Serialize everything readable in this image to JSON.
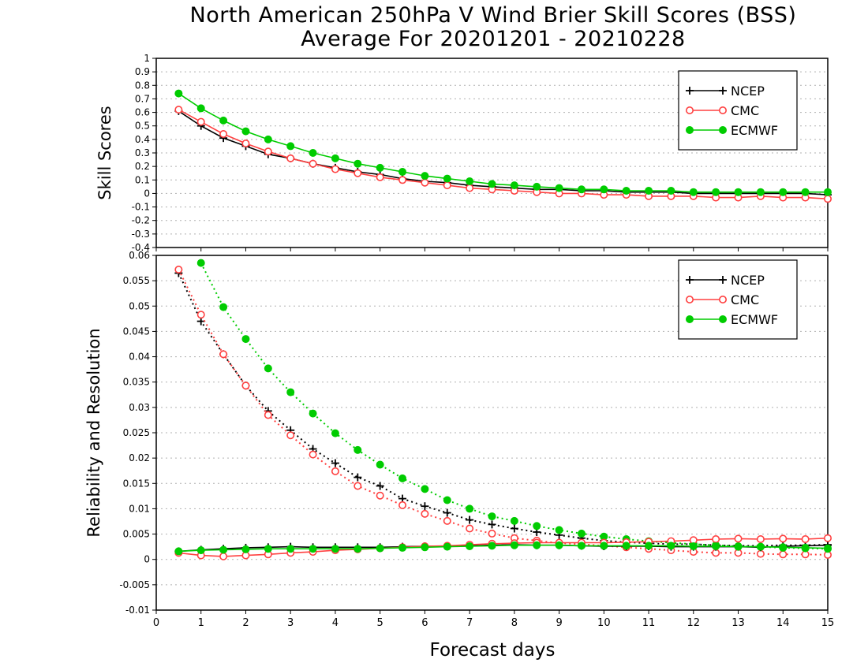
{
  "figure": {
    "title_line1": "North American 250hPa V Wind Brier Skill Scores (BSS)",
    "title_line2": "Average For 20201201 - 20210228"
  },
  "chart_data": [
    {
      "type": "line",
      "panel": "top",
      "ylabel": "Skill Scores",
      "xlabel": "",
      "xlim": [
        0,
        15
      ],
      "ylim": [
        -0.4,
        1.0
      ],
      "yticks": [
        "1",
        "0.9",
        "0.8",
        "0.7",
        "0.6",
        "0.5",
        "0.4",
        "0.3",
        "0.2",
        "0.1",
        "0",
        "-0.1",
        "-0.2",
        "-0.3",
        "-0.4"
      ],
      "grid": true,
      "legend_position": "top-right",
      "series": [
        {
          "name": "NCEP",
          "color": "#000000",
          "marker": "plus",
          "style": "solid",
          "x": [
            0.5,
            1,
            1.5,
            2,
            2.5,
            3,
            3.5,
            4,
            4.5,
            5,
            5.5,
            6,
            6.5,
            7,
            7.5,
            8,
            8.5,
            9,
            9.5,
            10,
            10.5,
            11,
            11.5,
            12,
            12.5,
            13,
            13.5,
            14,
            14.5,
            15
          ],
          "y": [
            0.61,
            0.5,
            0.41,
            0.35,
            0.29,
            0.26,
            0.22,
            0.19,
            0.16,
            0.14,
            0.11,
            0.09,
            0.08,
            0.06,
            0.05,
            0.04,
            0.03,
            0.03,
            0.02,
            0.02,
            0.01,
            0.01,
            0.01,
            0.0,
            0.0,
            0.0,
            0.0,
            0.0,
            0.0,
            -0.01
          ]
        },
        {
          "name": "CMC",
          "color": "#ff4040",
          "marker": "circle-open",
          "style": "solid",
          "x": [
            0.5,
            1,
            1.5,
            2,
            2.5,
            3,
            3.5,
            4,
            4.5,
            5,
            5.5,
            6,
            6.5,
            7,
            7.5,
            8,
            8.5,
            9,
            9.5,
            10,
            10.5,
            11,
            11.5,
            12,
            12.5,
            13,
            13.5,
            14,
            14.5,
            15
          ],
          "y": [
            0.62,
            0.53,
            0.44,
            0.37,
            0.31,
            0.26,
            0.22,
            0.18,
            0.15,
            0.12,
            0.1,
            0.08,
            0.06,
            0.04,
            0.03,
            0.02,
            0.01,
            0.0,
            -0.0,
            -0.01,
            -0.01,
            -0.02,
            -0.02,
            -0.02,
            -0.03,
            -0.03,
            -0.02,
            -0.03,
            -0.03,
            -0.04
          ]
        },
        {
          "name": "ECMWF",
          "color": "#00cc00",
          "marker": "dot",
          "style": "solid",
          "x": [
            0.5,
            1,
            1.5,
            2,
            2.5,
            3,
            3.5,
            4,
            4.5,
            5,
            5.5,
            6,
            6.5,
            7,
            7.5,
            8,
            8.5,
            9,
            9.5,
            10,
            10.5,
            11,
            11.5,
            12,
            12.5,
            13,
            13.5,
            14,
            14.5,
            15
          ],
          "y": [
            0.74,
            0.63,
            0.54,
            0.46,
            0.4,
            0.35,
            0.3,
            0.26,
            0.22,
            0.19,
            0.16,
            0.13,
            0.11,
            0.09,
            0.07,
            0.06,
            0.05,
            0.04,
            0.03,
            0.03,
            0.02,
            0.02,
            0.02,
            0.01,
            0.01,
            0.01,
            0.01,
            0.01,
            0.01,
            0.01
          ]
        }
      ]
    },
    {
      "type": "line",
      "panel": "bottom",
      "ylabel": "Reliability and Resolution",
      "xlabel": "Forecast days",
      "xlim": [
        0,
        15
      ],
      "ylim": [
        -0.01,
        0.06
      ],
      "xticks": [
        "0",
        "1",
        "2",
        "3",
        "4",
        "5",
        "6",
        "7",
        "8",
        "9",
        "10",
        "11",
        "12",
        "13",
        "14",
        "15"
      ],
      "yticks": [
        "0.06",
        "0.055",
        "0.05",
        "0.045",
        "0.04",
        "0.035",
        "0.03",
        "0.025",
        "0.02",
        "0.015",
        "0.01",
        "0.005",
        "0",
        "-0.005",
        "-0.01"
      ],
      "grid": true,
      "legend_position": "top-right",
      "series": [
        {
          "name": "NCEP",
          "color": "#000000",
          "marker": "plus",
          "style": "dotted",
          "x": [
            0.5,
            1,
            1.5,
            2,
            2.5,
            3,
            3.5,
            4,
            4.5,
            5,
            5.5,
            6,
            6.5,
            7,
            7.5,
            8,
            8.5,
            9,
            9.5,
            10,
            10.5,
            11,
            11.5,
            12,
            12.5,
            13,
            13.5,
            14,
            14.5,
            15
          ],
          "y": [
            0.0565,
            0.047,
            0.0405,
            0.0343,
            0.0293,
            0.0255,
            0.0218,
            0.019,
            0.0162,
            0.0145,
            0.012,
            0.0105,
            0.0092,
            0.0078,
            0.0069,
            0.0061,
            0.0054,
            0.0048,
            0.0042,
            0.0037,
            0.0034,
            0.0032,
            0.003,
            0.003,
            0.0028,
            0.0027,
            0.0027,
            0.0028,
            0.0028,
            0.0029
          ]
        },
        {
          "name": "CMC",
          "color": "#ff4040",
          "marker": "circle-open",
          "style": "dotted",
          "x": [
            0.5,
            1,
            1.5,
            2,
            2.5,
            3,
            3.5,
            4,
            4.5,
            5,
            5.5,
            6,
            6.5,
            7,
            7.5,
            8,
            8.5,
            9,
            9.5,
            10,
            10.5,
            11,
            11.5,
            12,
            12.5,
            13,
            13.5,
            14,
            14.5,
            15
          ],
          "y": [
            0.0572,
            0.0483,
            0.0405,
            0.0343,
            0.0285,
            0.0245,
            0.0207,
            0.0174,
            0.0145,
            0.0126,
            0.0107,
            0.009,
            0.0076,
            0.0061,
            0.0051,
            0.0042,
            0.0037,
            0.0032,
            0.003,
            0.0027,
            0.0024,
            0.0021,
            0.0018,
            0.0015,
            0.0013,
            0.0013,
            0.0011,
            0.001,
            0.001,
            0.0009
          ]
        },
        {
          "name": "ECMWF",
          "color": "#00cc00",
          "marker": "dot",
          "style": "dotted",
          "x": [
            1,
            1.5,
            2,
            2.5,
            3,
            3.5,
            4,
            4.5,
            5,
            5.5,
            6,
            6.5,
            7,
            7.5,
            8,
            8.5,
            9,
            9.5,
            10,
            10.5,
            11,
            11.5,
            12,
            12.5,
            13,
            13.5,
            14,
            14.5,
            15
          ],
          "y": [
            0.0585,
            0.0498,
            0.0435,
            0.0377,
            0.033,
            0.0288,
            0.0249,
            0.0216,
            0.0187,
            0.016,
            0.0139,
            0.0117,
            0.01,
            0.0085,
            0.0076,
            0.0066,
            0.0058,
            0.0051,
            0.0045,
            0.004,
            0.0036,
            0.0033,
            0.003,
            0.0028,
            0.0026,
            0.0025,
            0.0023,
            0.0022,
            0.0021
          ]
        },
        {
          "name": "NCEP",
          "color": "#000000",
          "marker": "plus",
          "style": "solid",
          "x": [
            0.5,
            1,
            1.5,
            2,
            2.5,
            3,
            3.5,
            4,
            4.5,
            5,
            5.5,
            6,
            6.5,
            7,
            7.5,
            8,
            8.5,
            9,
            9.5,
            10,
            10.5,
            11,
            11.5,
            12,
            12.5,
            13,
            13.5,
            14,
            14.5,
            15
          ],
          "y": [
            0.0016,
            0.0019,
            0.0021,
            0.0023,
            0.0024,
            0.0025,
            0.0024,
            0.0024,
            0.0024,
            0.0024,
            0.0025,
            0.0026,
            0.0026,
            0.0027,
            0.0028,
            0.0029,
            0.0028,
            0.0028,
            0.0027,
            0.0026,
            0.0026,
            0.0026,
            0.0025,
            0.0025,
            0.0025,
            0.0025,
            0.0024,
            0.0026,
            0.0027,
            0.0028
          ]
        },
        {
          "name": "CMC",
          "color": "#ff4040",
          "marker": "circle-open",
          "style": "solid",
          "x": [
            0.5,
            1,
            1.5,
            2,
            2.5,
            3,
            3.5,
            4,
            4.5,
            5,
            5.5,
            6,
            6.5,
            7,
            7.5,
            8,
            8.5,
            9,
            9.5,
            10,
            10.5,
            11,
            11.5,
            12,
            12.5,
            13,
            13.5,
            14,
            14.5,
            15
          ],
          "y": [
            0.0013,
            0.0008,
            0.0006,
            0.0008,
            0.001,
            0.0013,
            0.0015,
            0.0018,
            0.002,
            0.0022,
            0.0024,
            0.0026,
            0.0027,
            0.0029,
            0.0031,
            0.0032,
            0.0033,
            0.0033,
            0.0033,
            0.0033,
            0.0034,
            0.0035,
            0.0036,
            0.0038,
            0.004,
            0.0041,
            0.004,
            0.0041,
            0.004,
            0.0042
          ]
        },
        {
          "name": "ECMWF",
          "color": "#00cc00",
          "marker": "dot",
          "style": "solid",
          "x": [
            0.5,
            1,
            1.5,
            2,
            2.5,
            3,
            3.5,
            4,
            4.5,
            5,
            5.5,
            6,
            6.5,
            7,
            7.5,
            8,
            8.5,
            9,
            9.5,
            10,
            10.5,
            11,
            11.5,
            12,
            12.5,
            13,
            13.5,
            14,
            14.5,
            15
          ],
          "y": [
            0.0016,
            0.0018,
            0.0019,
            0.002,
            0.0021,
            0.0021,
            0.0021,
            0.0021,
            0.0021,
            0.0022,
            0.0023,
            0.0024,
            0.0025,
            0.0026,
            0.0027,
            0.0028,
            0.0028,
            0.0028,
            0.0027,
            0.0027,
            0.0027,
            0.0027,
            0.0027,
            0.0026,
            0.0026,
            0.0025,
            0.0025,
            0.0024,
            0.0023,
            0.0022
          ]
        }
      ]
    }
  ]
}
